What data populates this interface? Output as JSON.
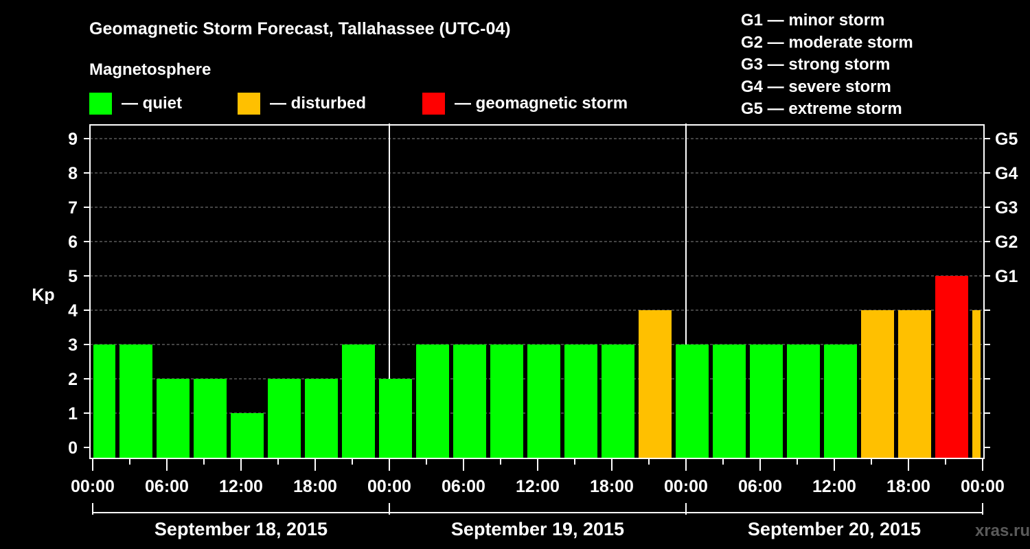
{
  "chart_data": {
    "type": "bar",
    "title": "Geomagnetic Storm Forecast, Tallahassee (UTC-04)",
    "legend_title": "Magnetosphere",
    "legend": [
      {
        "label": "— quiet",
        "color": "#00ff00"
      },
      {
        "label": "— disturbed",
        "color": "#ffc000"
      },
      {
        "label": "— geomagnetic storm",
        "color": "#ff0000"
      }
    ],
    "storm_scale": [
      "G1 — minor storm",
      "G2 — moderate storm",
      "G3 — strong storm",
      "G4 — severe storm",
      "G5 — extreme storm"
    ],
    "ylabel": "Kp",
    "ylim": [
      0,
      9
    ],
    "yticks": [
      "0",
      "1",
      "2",
      "3",
      "4",
      "5",
      "6",
      "7",
      "8",
      "9"
    ],
    "right_ticks": [
      {
        "kp": 5,
        "label": "G1"
      },
      {
        "kp": 6,
        "label": "G2"
      },
      {
        "kp": 7,
        "label": "G3"
      },
      {
        "kp": 8,
        "label": "G4"
      },
      {
        "kp": 9,
        "label": "G5"
      }
    ],
    "x_unit": "hours since September 18, 2015 00:00 local",
    "xlim": [
      0,
      72
    ],
    "xticks": [
      "00:00",
      "06:00",
      "12:00",
      "18:00",
      "00:00",
      "06:00",
      "12:00",
      "18:00",
      "00:00",
      "06:00",
      "12:00",
      "18:00",
      "00:00"
    ],
    "days": [
      "September 18, 2015",
      "September 19, 2015",
      "September 20, 2015"
    ],
    "bar_interval_hours": 3,
    "bar_start_hours": [
      -1,
      2,
      5,
      8,
      11,
      14,
      17,
      20,
      23,
      26,
      29,
      32,
      35,
      38,
      41,
      44,
      47,
      50,
      53,
      56,
      59,
      62,
      65,
      68,
      71
    ],
    "values": [
      3,
      3,
      2,
      2,
      1,
      2,
      2,
      3,
      2,
      3,
      3,
      3,
      3,
      3,
      3,
      4,
      3,
      3,
      3,
      3,
      3,
      4,
      4,
      5,
      4
    ],
    "color_rule": {
      "quiet_max": 3,
      "disturbed": 4,
      "storm_min": 5
    },
    "grid": "dashed horizontal at each Kp",
    "watermark": "xras.ru"
  }
}
